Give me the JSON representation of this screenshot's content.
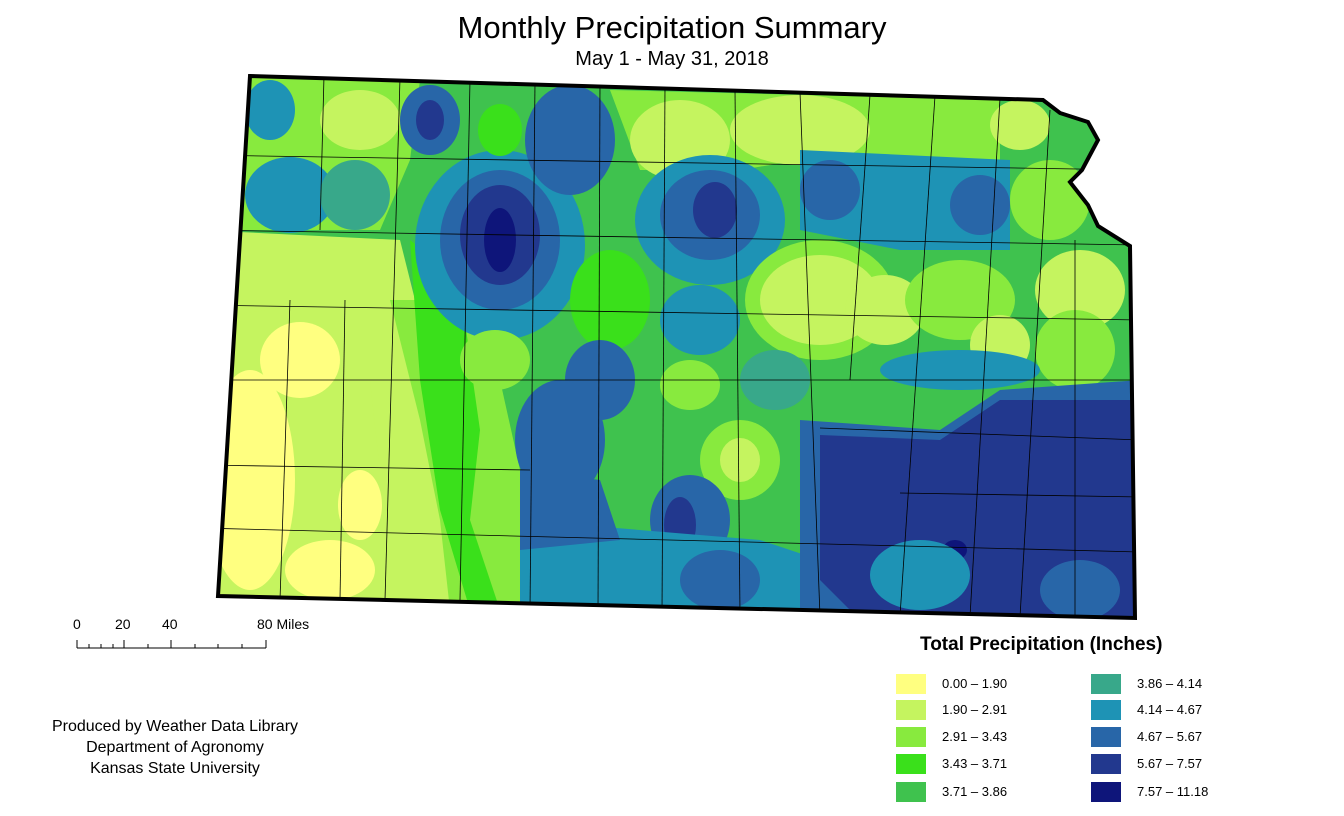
{
  "title": "Monthly Precipitation Summary",
  "subtitle": "May 1 - May 31, 2018",
  "scale_bar": {
    "labels": [
      "0",
      "20",
      "40",
      "80 Miles"
    ]
  },
  "credit": [
    "Produced by Weather Data Library",
    "Department of Agronomy",
    "Kansas State University"
  ],
  "legend": {
    "title": "Total Precipitation (Inches)",
    "items": [
      {
        "label": "0.00 – 1.90",
        "color": "#FFFF80"
      },
      {
        "label": "1.90 – 2.91",
        "color": "#C5F45F"
      },
      {
        "label": "2.91 – 3.43",
        "color": "#88EA3E"
      },
      {
        "label": "3.43 – 3.71",
        "color": "#3AE01B"
      },
      {
        "label": "3.71 – 3.86",
        "color": "#3FC24E"
      },
      {
        "label": "3.86 – 4.14",
        "color": "#38A88A"
      },
      {
        "label": "4.14 – 4.67",
        "color": "#1E93B5"
      },
      {
        "label": "4.67 – 5.67",
        "color": "#2866A8"
      },
      {
        "label": "5.67 – 7.57",
        "color": "#22388E"
      },
      {
        "label": "7.57 – 11.18",
        "color": "#0E157A"
      }
    ]
  }
}
